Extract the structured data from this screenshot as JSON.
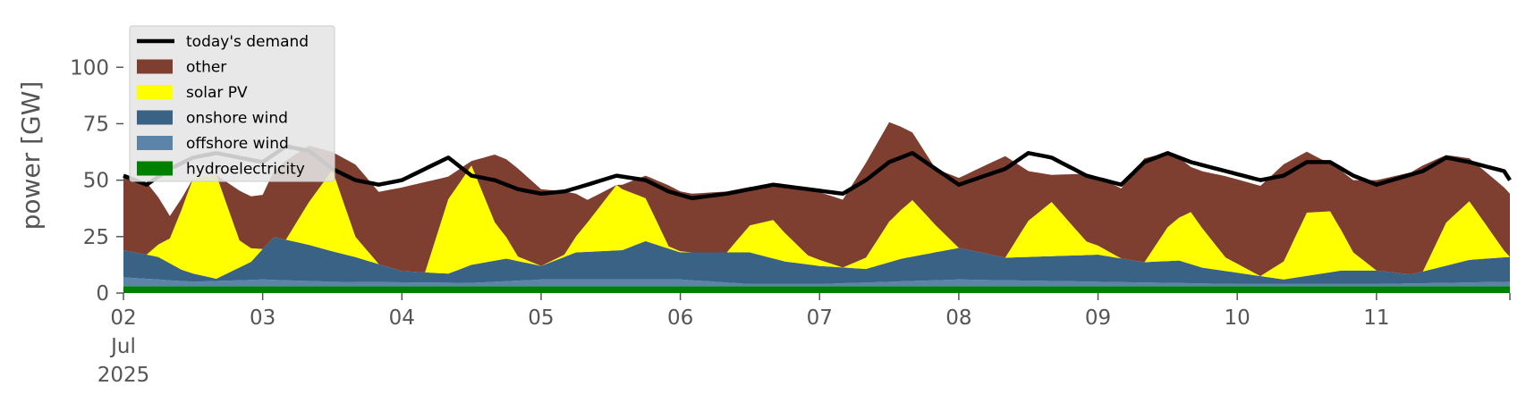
{
  "chart_data": {
    "type": "area",
    "ylabel": "power [GW]",
    "ylim": [
      0,
      110
    ],
    "yticks": [
      0,
      25,
      50,
      75,
      100
    ],
    "xlim": [
      0,
      239
    ],
    "x_unit": "hours since 2025-07-02 00:00",
    "xticks": [
      {
        "x": 0,
        "lines": [
          "02",
          "Jul",
          "2025"
        ]
      },
      {
        "x": 24,
        "lines": [
          "03"
        ]
      },
      {
        "x": 48,
        "lines": [
          "04"
        ]
      },
      {
        "x": 72,
        "lines": [
          "05"
        ]
      },
      {
        "x": 96,
        "lines": [
          "06"
        ]
      },
      {
        "x": 120,
        "lines": [
          "07"
        ]
      },
      {
        "x": 144,
        "lines": [
          "08"
        ]
      },
      {
        "x": 168,
        "lines": [
          "09"
        ]
      },
      {
        "x": 192,
        "lines": [
          "10"
        ]
      },
      {
        "x": 216,
        "lines": [
          "11"
        ]
      }
    ],
    "grid": false,
    "legend_position": "top-left",
    "stack_order": [
      "hydroelectricity",
      "offshore wind",
      "onshore wind",
      "solar PV",
      "other"
    ],
    "series": [
      {
        "name": "hydroelectricity",
        "color": "#008000",
        "points": [
          [
            0,
            3
          ],
          [
            60,
            3
          ],
          [
            120,
            3
          ],
          [
            180,
            3
          ],
          [
            239,
            3
          ]
        ]
      },
      {
        "name": "offshore wind",
        "color": "#5b84a8",
        "points": [
          [
            0,
            4
          ],
          [
            12,
            2
          ],
          [
            24,
            3
          ],
          [
            36,
            2
          ],
          [
            60,
            1.5
          ],
          [
            72,
            3
          ],
          [
            84,
            3
          ],
          [
            96,
            3
          ],
          [
            108,
            1
          ],
          [
            120,
            1
          ],
          [
            144,
            3
          ],
          [
            168,
            2
          ],
          [
            192,
            1
          ],
          [
            216,
            1
          ],
          [
            239,
            2
          ]
        ]
      },
      {
        "name": "onshore wind",
        "color": "#3a6285",
        "points": [
          [
            0,
            12
          ],
          [
            6,
            10
          ],
          [
            10,
            5
          ],
          [
            16,
            1
          ],
          [
            22,
            8
          ],
          [
            26,
            19
          ],
          [
            32,
            16
          ],
          [
            40,
            11
          ],
          [
            48,
            5
          ],
          [
            56,
            4
          ],
          [
            60,
            8
          ],
          [
            66,
            10
          ],
          [
            72,
            6
          ],
          [
            78,
            12
          ],
          [
            86,
            13
          ],
          [
            90,
            17
          ],
          [
            96,
            12
          ],
          [
            102,
            13
          ],
          [
            108,
            14
          ],
          [
            114,
            10
          ],
          [
            120,
            8
          ],
          [
            128,
            6
          ],
          [
            134,
            10
          ],
          [
            144,
            14
          ],
          [
            152,
            10
          ],
          [
            160,
            11
          ],
          [
            168,
            12
          ],
          [
            176,
            9
          ],
          [
            182,
            10
          ],
          [
            186,
            7
          ],
          [
            192,
            5
          ],
          [
            200,
            2
          ],
          [
            210,
            6
          ],
          [
            216,
            6
          ],
          [
            222,
            4
          ],
          [
            232,
            10
          ],
          [
            239,
            11
          ]
        ]
      },
      {
        "name": "solar PV",
        "color": "#ffff00",
        "points": [
          [
            0,
            0
          ],
          [
            4,
            0
          ],
          [
            8,
            11
          ],
          [
            12,
            42
          ],
          [
            16,
            46
          ],
          [
            20,
            12
          ],
          [
            24,
            0
          ],
          [
            28,
            0
          ],
          [
            32,
            19
          ],
          [
            36,
            36
          ],
          [
            40,
            9
          ],
          [
            44,
            0
          ],
          [
            52,
            0
          ],
          [
            56,
            33
          ],
          [
            60,
            44
          ],
          [
            64,
            17
          ],
          [
            68,
            2
          ],
          [
            72,
            0
          ],
          [
            76,
            1
          ],
          [
            80,
            13
          ],
          [
            85,
            29
          ],
          [
            90,
            19
          ],
          [
            94,
            1
          ],
          [
            98,
            0
          ],
          [
            104,
            0
          ],
          [
            108,
            12
          ],
          [
            112,
            17
          ],
          [
            118,
            4
          ],
          [
            124,
            0
          ],
          [
            128,
            5
          ],
          [
            132,
            18
          ],
          [
            136,
            25
          ],
          [
            140,
            12
          ],
          [
            144,
            0
          ],
          [
            152,
            0
          ],
          [
            156,
            16
          ],
          [
            160,
            24
          ],
          [
            166,
            6
          ],
          [
            172,
            0
          ],
          [
            176,
            0
          ],
          [
            180,
            15
          ],
          [
            184,
            23
          ],
          [
            190,
            6
          ],
          [
            196,
            0
          ],
          [
            200,
            8
          ],
          [
            204,
            28
          ],
          [
            208,
            27
          ],
          [
            212,
            8
          ],
          [
            216,
            0
          ],
          [
            224,
            0
          ],
          [
            228,
            19
          ],
          [
            232,
            26
          ],
          [
            238,
            3
          ],
          [
            239,
            0
          ]
        ]
      },
      {
        "name": "other",
        "color": "#7f3f30",
        "points": [
          [
            0,
            33
          ],
          [
            4,
            32
          ],
          [
            8,
            10
          ],
          [
            12,
            0
          ],
          [
            16,
            0
          ],
          [
            20,
            22
          ],
          [
            24,
            24
          ],
          [
            28,
            35
          ],
          [
            32,
            25
          ],
          [
            36,
            8
          ],
          [
            40,
            32
          ],
          [
            44,
            32
          ],
          [
            48,
            37
          ],
          [
            52,
            40
          ],
          [
            56,
            10
          ],
          [
            60,
            2
          ],
          [
            64,
            30
          ],
          [
            68,
            39
          ],
          [
            72,
            34
          ],
          [
            76,
            28
          ],
          [
            80,
            10
          ],
          [
            85,
            0
          ],
          [
            90,
            10
          ],
          [
            94,
            27
          ],
          [
            98,
            26
          ],
          [
            104,
            27
          ],
          [
            108,
            17
          ],
          [
            112,
            15
          ],
          [
            118,
            30
          ],
          [
            124,
            30
          ],
          [
            128,
            42
          ],
          [
            132,
            44
          ],
          [
            136,
            30
          ],
          [
            140,
            25
          ],
          [
            144,
            31
          ],
          [
            152,
            45
          ],
          [
            156,
            22
          ],
          [
            160,
            12
          ],
          [
            166,
            30
          ],
          [
            172,
            31
          ],
          [
            176,
            46
          ],
          [
            180,
            33
          ],
          [
            184,
            20
          ],
          [
            190,
            36
          ],
          [
            196,
            40
          ],
          [
            200,
            43
          ],
          [
            204,
            27
          ],
          [
            208,
            21
          ],
          [
            212,
            32
          ],
          [
            216,
            40
          ],
          [
            224,
            47
          ],
          [
            228,
            30
          ],
          [
            232,
            19
          ],
          [
            238,
            28
          ],
          [
            239,
            28
          ]
        ]
      }
    ],
    "demand": {
      "name": "today's demand",
      "color": "#000000",
      "points": [
        [
          0,
          52
        ],
        [
          4,
          48
        ],
        [
          8,
          55
        ],
        [
          12,
          60
        ],
        [
          16,
          62
        ],
        [
          20,
          60
        ],
        [
          24,
          58
        ],
        [
          28,
          65
        ],
        [
          32,
          63
        ],
        [
          36,
          55
        ],
        [
          40,
          50
        ],
        [
          44,
          48
        ],
        [
          48,
          50
        ],
        [
          52,
          55
        ],
        [
          56,
          60
        ],
        [
          60,
          52
        ],
        [
          64,
          50
        ],
        [
          68,
          46
        ],
        [
          72,
          44
        ],
        [
          76,
          45
        ],
        [
          80,
          48
        ],
        [
          85,
          52
        ],
        [
          90,
          50
        ],
        [
          94,
          45
        ],
        [
          98,
          42
        ],
        [
          104,
          44
        ],
        [
          108,
          46
        ],
        [
          112,
          48
        ],
        [
          118,
          46
        ],
        [
          124,
          44
        ],
        [
          128,
          50
        ],
        [
          132,
          58
        ],
        [
          136,
          62
        ],
        [
          140,
          55
        ],
        [
          144,
          48
        ],
        [
          152,
          55
        ],
        [
          156,
          62
        ],
        [
          160,
          60
        ],
        [
          166,
          52
        ],
        [
          172,
          48
        ],
        [
          176,
          58
        ],
        [
          180,
          62
        ],
        [
          184,
          58
        ],
        [
          190,
          54
        ],
        [
          196,
          50
        ],
        [
          200,
          52
        ],
        [
          204,
          58
        ],
        [
          208,
          58
        ],
        [
          212,
          52
        ],
        [
          216,
          48
        ],
        [
          224,
          54
        ],
        [
          228,
          60
        ],
        [
          232,
          58
        ],
        [
          238,
          54
        ],
        [
          239,
          50
        ]
      ]
    }
  },
  "legend": [
    {
      "label": "today's demand",
      "kind": "line",
      "color": "#000000"
    },
    {
      "label": "other",
      "kind": "patch",
      "color": "#7f3f30"
    },
    {
      "label": "solar PV",
      "kind": "patch",
      "color": "#ffff00"
    },
    {
      "label": "onshore wind",
      "kind": "patch",
      "color": "#3a6285"
    },
    {
      "label": "offshore wind",
      "kind": "patch",
      "color": "#5b84a8"
    },
    {
      "label": "hydroelectricity",
      "kind": "patch",
      "color": "#008000"
    }
  ]
}
